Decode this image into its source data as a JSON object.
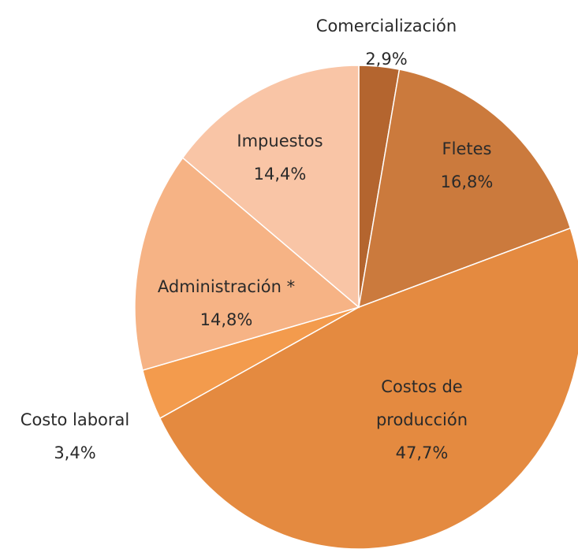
{
  "chart_data": {
    "type": "pie",
    "categories": [
      "Comercialización",
      "Fletes",
      "Costos de producción",
      "Costo laboral",
      "Administración *",
      "Impuestos"
    ],
    "values": [
      2.9,
      16.8,
      47.7,
      3.4,
      14.8,
      14.4
    ],
    "value_labels": [
      "2,9%",
      "16,8%",
      "47,7%",
      "3,4%",
      "14,8%",
      "14,4%"
    ],
    "colors": [
      "#b4652f",
      "#cb7a3d",
      "#e48a40",
      "#f39b4d",
      "#f6b385",
      "#f9c5a6"
    ]
  }
}
